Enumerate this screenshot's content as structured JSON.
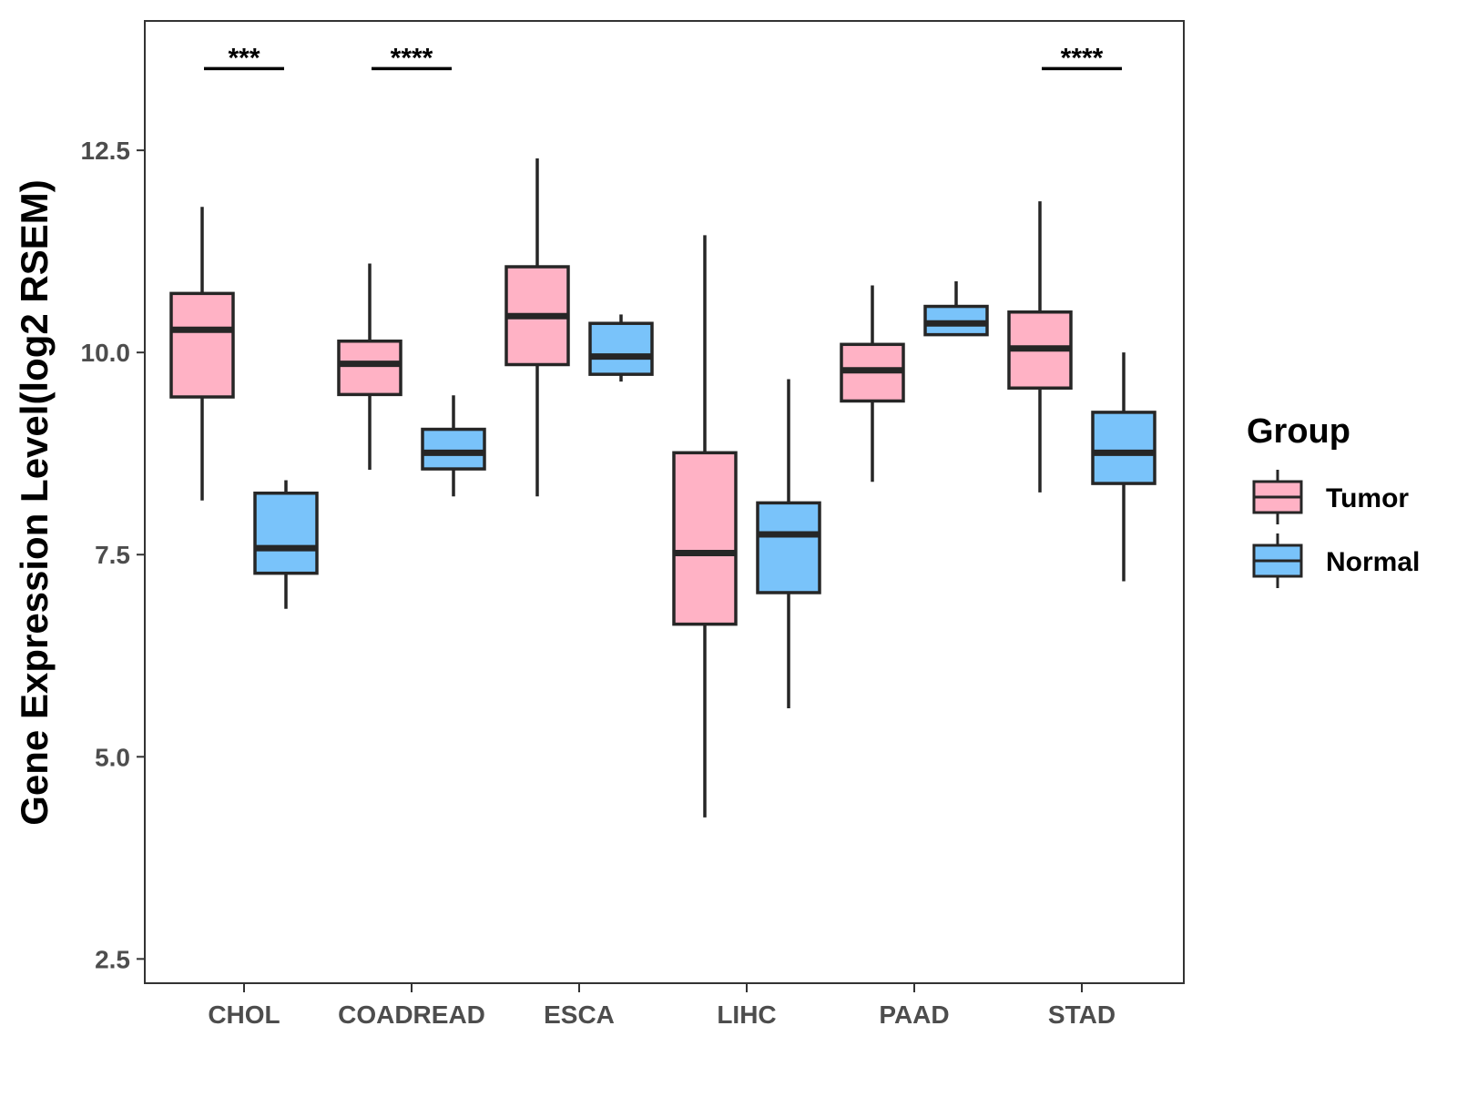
{
  "chart_data": {
    "type": "boxplot",
    "title": "",
    "xlabel": "",
    "ylabel": "Gene Expression Level(log2 RSEM)",
    "ylim": [
      2.2,
      14.1
    ],
    "yticks": [
      2.5,
      5.0,
      7.5,
      10.0,
      12.5
    ],
    "ytick_labels": [
      "2.5",
      "5.0",
      "7.5",
      "10.0",
      "12.5"
    ],
    "categories": [
      "CHOL",
      "COADREAD",
      "ESCA",
      "LIHC",
      "PAAD",
      "STAD"
    ],
    "legend": {
      "title": "Group",
      "position": "right",
      "entries": [
        {
          "name": "Tumor",
          "color": "#FFB2C5"
        },
        {
          "name": "Normal",
          "color": "#79C3FA"
        }
      ]
    },
    "grid": false,
    "series": [
      {
        "name": "Tumor",
        "color": "#FFB2C5",
        "boxes": [
          {
            "whislo": 8.17,
            "q1": 9.45,
            "med": 10.28,
            "q3": 10.73,
            "whishi": 11.8
          },
          {
            "whislo": 8.55,
            "q1": 9.48,
            "med": 9.86,
            "q3": 10.14,
            "whishi": 11.1
          },
          {
            "whislo": 8.22,
            "q1": 9.85,
            "med": 10.45,
            "q3": 11.06,
            "whishi": 12.4
          },
          {
            "whislo": 4.25,
            "q1": 6.64,
            "med": 7.52,
            "q3": 8.76,
            "whishi": 11.45
          },
          {
            "whislo": 8.4,
            "q1": 9.4,
            "med": 9.78,
            "q3": 10.1,
            "whishi": 10.83
          },
          {
            "whislo": 8.27,
            "q1": 9.56,
            "med": 10.05,
            "q3": 10.5,
            "whishi": 11.87
          }
        ]
      },
      {
        "name": "Normal",
        "color": "#79C3FA",
        "boxes": [
          {
            "whislo": 6.83,
            "q1": 7.27,
            "med": 7.58,
            "q3": 8.26,
            "whishi": 8.42
          },
          {
            "whislo": 8.22,
            "q1": 8.56,
            "med": 8.76,
            "q3": 9.05,
            "whishi": 9.47
          },
          {
            "whislo": 9.64,
            "q1": 9.73,
            "med": 9.95,
            "q3": 10.36,
            "whishi": 10.47
          },
          {
            "whislo": 5.6,
            "q1": 7.03,
            "med": 7.75,
            "q3": 8.14,
            "whishi": 9.67
          },
          {
            "whislo": 10.22,
            "q1": 10.22,
            "med": 10.36,
            "q3": 10.57,
            "whishi": 10.88
          },
          {
            "whislo": 7.17,
            "q1": 8.38,
            "med": 8.76,
            "q3": 9.26,
            "whishi": 10.0
          }
        ]
      }
    ],
    "annotations": [
      {
        "category": "CHOL",
        "text": "***",
        "y": 13.6
      },
      {
        "category": "COADREAD",
        "text": "****",
        "y": 13.6
      },
      {
        "category": "STAD",
        "text": "****",
        "y": 13.6
      }
    ]
  }
}
